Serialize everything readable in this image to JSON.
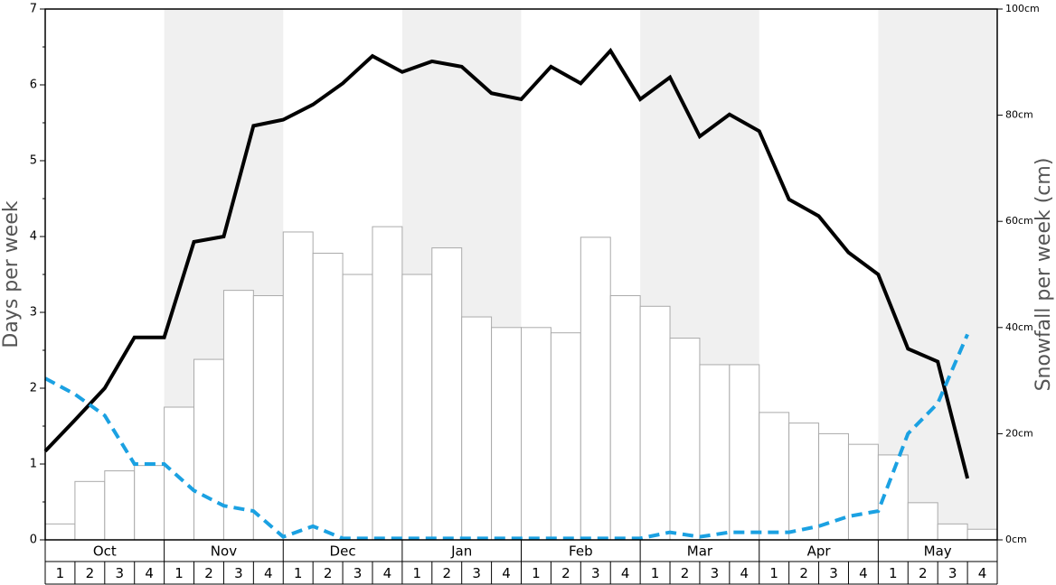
{
  "chart_data": {
    "type": "bar",
    "y_label": "Days per week",
    "y2_label": "Snowfall per week (cm)",
    "months": [
      "Oct",
      "Nov",
      "Dec",
      "Jan",
      "Feb",
      "Mar",
      "Apr",
      "May"
    ],
    "categories": [
      "1",
      "2",
      "3",
      "4",
      "1",
      "2",
      "3",
      "4",
      "1",
      "2",
      "3",
      "4",
      "1",
      "2",
      "3",
      "4",
      "1",
      "2",
      "3",
      "4",
      "1",
      "2",
      "3",
      "4",
      "1",
      "2",
      "3",
      "4",
      "1",
      "2",
      "3",
      "4"
    ],
    "ylim": [
      0,
      7
    ],
    "yticks": [
      0,
      1,
      2,
      3,
      4,
      5,
      6,
      7
    ],
    "y2lim": [
      0,
      100
    ],
    "y2ticks": [
      {
        "value": 0,
        "label": "0cm"
      },
      {
        "value": 20,
        "label": "20cm"
      },
      {
        "value": 40,
        "label": "40cm"
      },
      {
        "value": 60,
        "label": "60cm"
      },
      {
        "value": 80,
        "label": "80cm"
      },
      {
        "value": 100,
        "label": "100cm"
      }
    ],
    "series": [
      {
        "type": "bar",
        "axis": "y2",
        "color": "#ffffff",
        "values": [
          3,
          11,
          13,
          14,
          25,
          34,
          47,
          46,
          58,
          54,
          50,
          59,
          50,
          55,
          42,
          40,
          40,
          39,
          57,
          46,
          44,
          38,
          33,
          33,
          24,
          22,
          20,
          18,
          16,
          7,
          3,
          2
        ]
      },
      {
        "type": "line",
        "color": "#000000",
        "values": [
          1.17,
          1.58,
          2.0,
          2.67,
          2.67,
          3.93,
          4.0,
          5.46,
          5.54,
          5.74,
          6.02,
          6.38,
          6.17,
          6.31,
          6.24,
          5.89,
          5.81,
          6.24,
          6.02,
          6.45,
          5.81,
          6.1,
          5.32,
          5.61,
          5.39,
          4.49,
          4.27,
          3.79,
          3.5,
          2.52,
          2.35,
          0.81
        ]
      },
      {
        "type": "line",
        "dashed": true,
        "color": "#1ba1e2",
        "values": [
          2.13,
          1.92,
          1.64,
          1.0,
          1.0,
          0.65,
          0.45,
          0.38,
          0.04,
          0.18,
          0.02,
          0.02,
          0.02,
          0.02,
          0.02,
          0.02,
          0.02,
          0.02,
          0.02,
          0.02,
          0.02,
          0.1,
          0.04,
          0.1,
          0.1,
          0.1,
          0.18,
          0.31,
          0.38,
          1.4,
          1.8,
          2.71
        ]
      }
    ]
  }
}
